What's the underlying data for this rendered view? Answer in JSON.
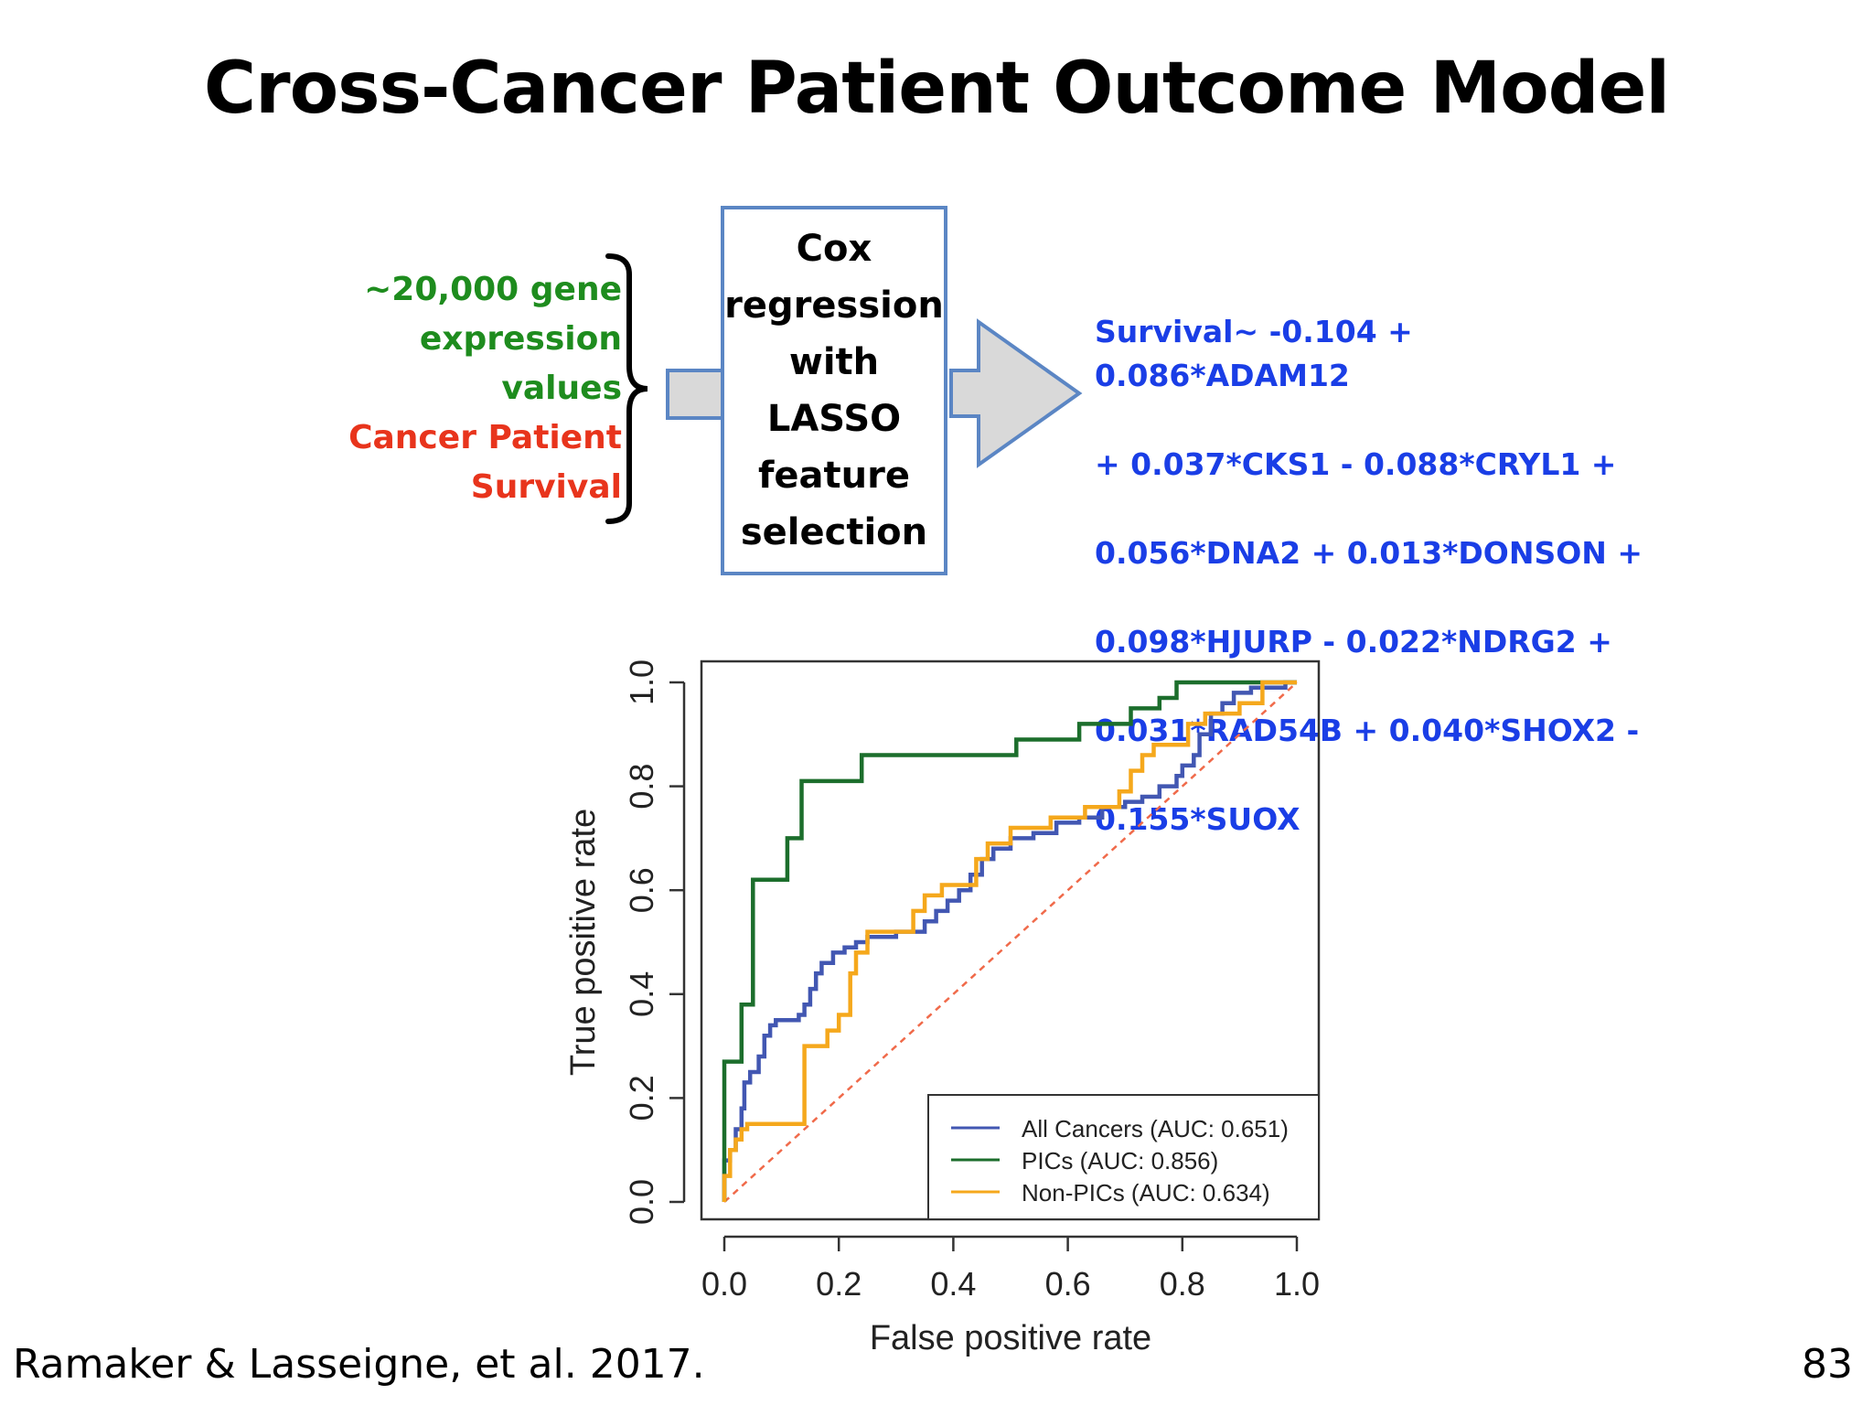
{
  "slide": {
    "title": "Cross-Cancer Patient Outcome Model",
    "inputs": {
      "line1": "~20,000 gene",
      "line2": "expression",
      "line3": "values",
      "line4": "Cancer Patient",
      "line5": "Survival"
    },
    "method": {
      "line1": "Cox",
      "line2": "regression",
      "line3": "with",
      "line4": "LASSO",
      "line5": "feature",
      "line6": "selection"
    },
    "equation": {
      "line1": "Survival~ -0.104 + 0.086*ADAM12",
      "line2": "+ 0.037*CKS1 - 0.088*CRYL1 +",
      "line3": "0.056*DNA2 + 0.013*DONSON +",
      "line4": "0.098*HJURP - 0.022*NDRG2 +",
      "line5": "0.031*RAD54B + 0.040*SHOX2 -",
      "line6": "0.155*SUOX"
    },
    "citation": "Ramaker & Lasseigne, et al. 2017.",
    "slide_number": "83"
  },
  "colors": {
    "green_text": "#1e8c1e",
    "red_text": "#e8341c",
    "equation_blue": "#1a3ee6",
    "box_border": "#5b86c4",
    "arrow_fill": "#d9d9d9",
    "arrow_stroke": "#5b86c4"
  },
  "chart_data": {
    "type": "line",
    "title": "",
    "xlabel": "False positive rate",
    "ylabel": "True positive rate",
    "xlim": [
      0,
      1
    ],
    "ylim": [
      0,
      1
    ],
    "xticks": [
      "0.0",
      "0.2",
      "0.4",
      "0.6",
      "0.8",
      "1.0"
    ],
    "yticks": [
      "0.0",
      "0.2",
      "0.4",
      "0.6",
      "0.8",
      "1.0"
    ],
    "legend_position": "bottom-right",
    "diagonal": {
      "color": "#f06a4a",
      "style": "dashed",
      "points": [
        [
          0,
          0
        ],
        [
          1,
          1
        ]
      ]
    },
    "series": [
      {
        "name": "All Cancers (AUC: 0.651)",
        "color": "#4257b2",
        "points": [
          [
            0,
            0
          ],
          [
            0,
            0.08
          ],
          [
            0.01,
            0.08
          ],
          [
            0.01,
            0.1
          ],
          [
            0.02,
            0.1
          ],
          [
            0.02,
            0.14
          ],
          [
            0.03,
            0.14
          ],
          [
            0.03,
            0.18
          ],
          [
            0.035,
            0.18
          ],
          [
            0.035,
            0.23
          ],
          [
            0.045,
            0.23
          ],
          [
            0.045,
            0.25
          ],
          [
            0.06,
            0.25
          ],
          [
            0.06,
            0.28
          ],
          [
            0.07,
            0.28
          ],
          [
            0.07,
            0.32
          ],
          [
            0.08,
            0.32
          ],
          [
            0.08,
            0.34
          ],
          [
            0.09,
            0.34
          ],
          [
            0.09,
            0.35
          ],
          [
            0.13,
            0.35
          ],
          [
            0.13,
            0.36
          ],
          [
            0.14,
            0.36
          ],
          [
            0.14,
            0.38
          ],
          [
            0.15,
            0.38
          ],
          [
            0.15,
            0.41
          ],
          [
            0.16,
            0.41
          ],
          [
            0.16,
            0.44
          ],
          [
            0.17,
            0.44
          ],
          [
            0.17,
            0.46
          ],
          [
            0.19,
            0.46
          ],
          [
            0.19,
            0.48
          ],
          [
            0.21,
            0.48
          ],
          [
            0.21,
            0.49
          ],
          [
            0.23,
            0.49
          ],
          [
            0.23,
            0.5
          ],
          [
            0.25,
            0.5
          ],
          [
            0.25,
            0.51
          ],
          [
            0.3,
            0.51
          ],
          [
            0.3,
            0.52
          ],
          [
            0.35,
            0.52
          ],
          [
            0.35,
            0.54
          ],
          [
            0.37,
            0.54
          ],
          [
            0.37,
            0.56
          ],
          [
            0.39,
            0.56
          ],
          [
            0.39,
            0.58
          ],
          [
            0.41,
            0.58
          ],
          [
            0.41,
            0.6
          ],
          [
            0.43,
            0.6
          ],
          [
            0.43,
            0.63
          ],
          [
            0.45,
            0.63
          ],
          [
            0.45,
            0.66
          ],
          [
            0.47,
            0.66
          ],
          [
            0.47,
            0.68
          ],
          [
            0.5,
            0.68
          ],
          [
            0.5,
            0.7
          ],
          [
            0.54,
            0.7
          ],
          [
            0.54,
            0.71
          ],
          [
            0.58,
            0.71
          ],
          [
            0.58,
            0.73
          ],
          [
            0.62,
            0.73
          ],
          [
            0.62,
            0.74
          ],
          [
            0.66,
            0.74
          ],
          [
            0.66,
            0.76
          ],
          [
            0.7,
            0.76
          ],
          [
            0.7,
            0.77
          ],
          [
            0.73,
            0.77
          ],
          [
            0.73,
            0.78
          ],
          [
            0.76,
            0.78
          ],
          [
            0.76,
            0.8
          ],
          [
            0.79,
            0.8
          ],
          [
            0.79,
            0.82
          ],
          [
            0.8,
            0.82
          ],
          [
            0.8,
            0.84
          ],
          [
            0.82,
            0.84
          ],
          [
            0.82,
            0.86
          ],
          [
            0.83,
            0.86
          ],
          [
            0.83,
            0.9
          ],
          [
            0.85,
            0.9
          ],
          [
            0.85,
            0.94
          ],
          [
            0.87,
            0.94
          ],
          [
            0.87,
            0.96
          ],
          [
            0.89,
            0.96
          ],
          [
            0.89,
            0.98
          ],
          [
            0.92,
            0.98
          ],
          [
            0.92,
            0.99
          ],
          [
            0.98,
            0.99
          ],
          [
            0.98,
            1.0
          ],
          [
            1.0,
            1.0
          ]
        ]
      },
      {
        "name": "PICs (AUC: 0.856)",
        "color": "#1c6e2c",
        "points": [
          [
            0,
            0
          ],
          [
            0,
            0.27
          ],
          [
            0.03,
            0.27
          ],
          [
            0.03,
            0.38
          ],
          [
            0.05,
            0.38
          ],
          [
            0.05,
            0.62
          ],
          [
            0.11,
            0.62
          ],
          [
            0.11,
            0.7
          ],
          [
            0.135,
            0.7
          ],
          [
            0.135,
            0.81
          ],
          [
            0.24,
            0.81
          ],
          [
            0.24,
            0.86
          ],
          [
            0.51,
            0.86
          ],
          [
            0.51,
            0.89
          ],
          [
            0.62,
            0.89
          ],
          [
            0.62,
            0.92
          ],
          [
            0.71,
            0.92
          ],
          [
            0.71,
            0.95
          ],
          [
            0.76,
            0.95
          ],
          [
            0.76,
            0.97
          ],
          [
            0.79,
            0.97
          ],
          [
            0.79,
            1.0
          ],
          [
            1.0,
            1.0
          ]
        ]
      },
      {
        "name": "Non-PICs (AUC: 0.634)",
        "color": "#f5a81c",
        "points": [
          [
            0,
            0
          ],
          [
            0,
            0.05
          ],
          [
            0.01,
            0.05
          ],
          [
            0.01,
            0.1
          ],
          [
            0.02,
            0.1
          ],
          [
            0.02,
            0.12
          ],
          [
            0.03,
            0.12
          ],
          [
            0.03,
            0.14
          ],
          [
            0.04,
            0.14
          ],
          [
            0.04,
            0.15
          ],
          [
            0.14,
            0.15
          ],
          [
            0.14,
            0.3
          ],
          [
            0.18,
            0.3
          ],
          [
            0.18,
            0.33
          ],
          [
            0.2,
            0.33
          ],
          [
            0.2,
            0.36
          ],
          [
            0.22,
            0.36
          ],
          [
            0.22,
            0.44
          ],
          [
            0.23,
            0.44
          ],
          [
            0.23,
            0.48
          ],
          [
            0.25,
            0.48
          ],
          [
            0.25,
            0.52
          ],
          [
            0.33,
            0.52
          ],
          [
            0.33,
            0.56
          ],
          [
            0.35,
            0.56
          ],
          [
            0.35,
            0.59
          ],
          [
            0.38,
            0.59
          ],
          [
            0.38,
            0.61
          ],
          [
            0.44,
            0.61
          ],
          [
            0.44,
            0.66
          ],
          [
            0.46,
            0.66
          ],
          [
            0.46,
            0.69
          ],
          [
            0.5,
            0.69
          ],
          [
            0.5,
            0.72
          ],
          [
            0.57,
            0.72
          ],
          [
            0.57,
            0.74
          ],
          [
            0.63,
            0.74
          ],
          [
            0.63,
            0.76
          ],
          [
            0.69,
            0.76
          ],
          [
            0.69,
            0.79
          ],
          [
            0.71,
            0.79
          ],
          [
            0.71,
            0.83
          ],
          [
            0.73,
            0.83
          ],
          [
            0.73,
            0.86
          ],
          [
            0.75,
            0.86
          ],
          [
            0.75,
            0.88
          ],
          [
            0.81,
            0.88
          ],
          [
            0.81,
            0.92
          ],
          [
            0.84,
            0.92
          ],
          [
            0.84,
            0.94
          ],
          [
            0.9,
            0.94
          ],
          [
            0.9,
            0.96
          ],
          [
            0.94,
            0.96
          ],
          [
            0.94,
            1.0
          ],
          [
            1.0,
            1.0
          ]
        ]
      }
    ]
  }
}
